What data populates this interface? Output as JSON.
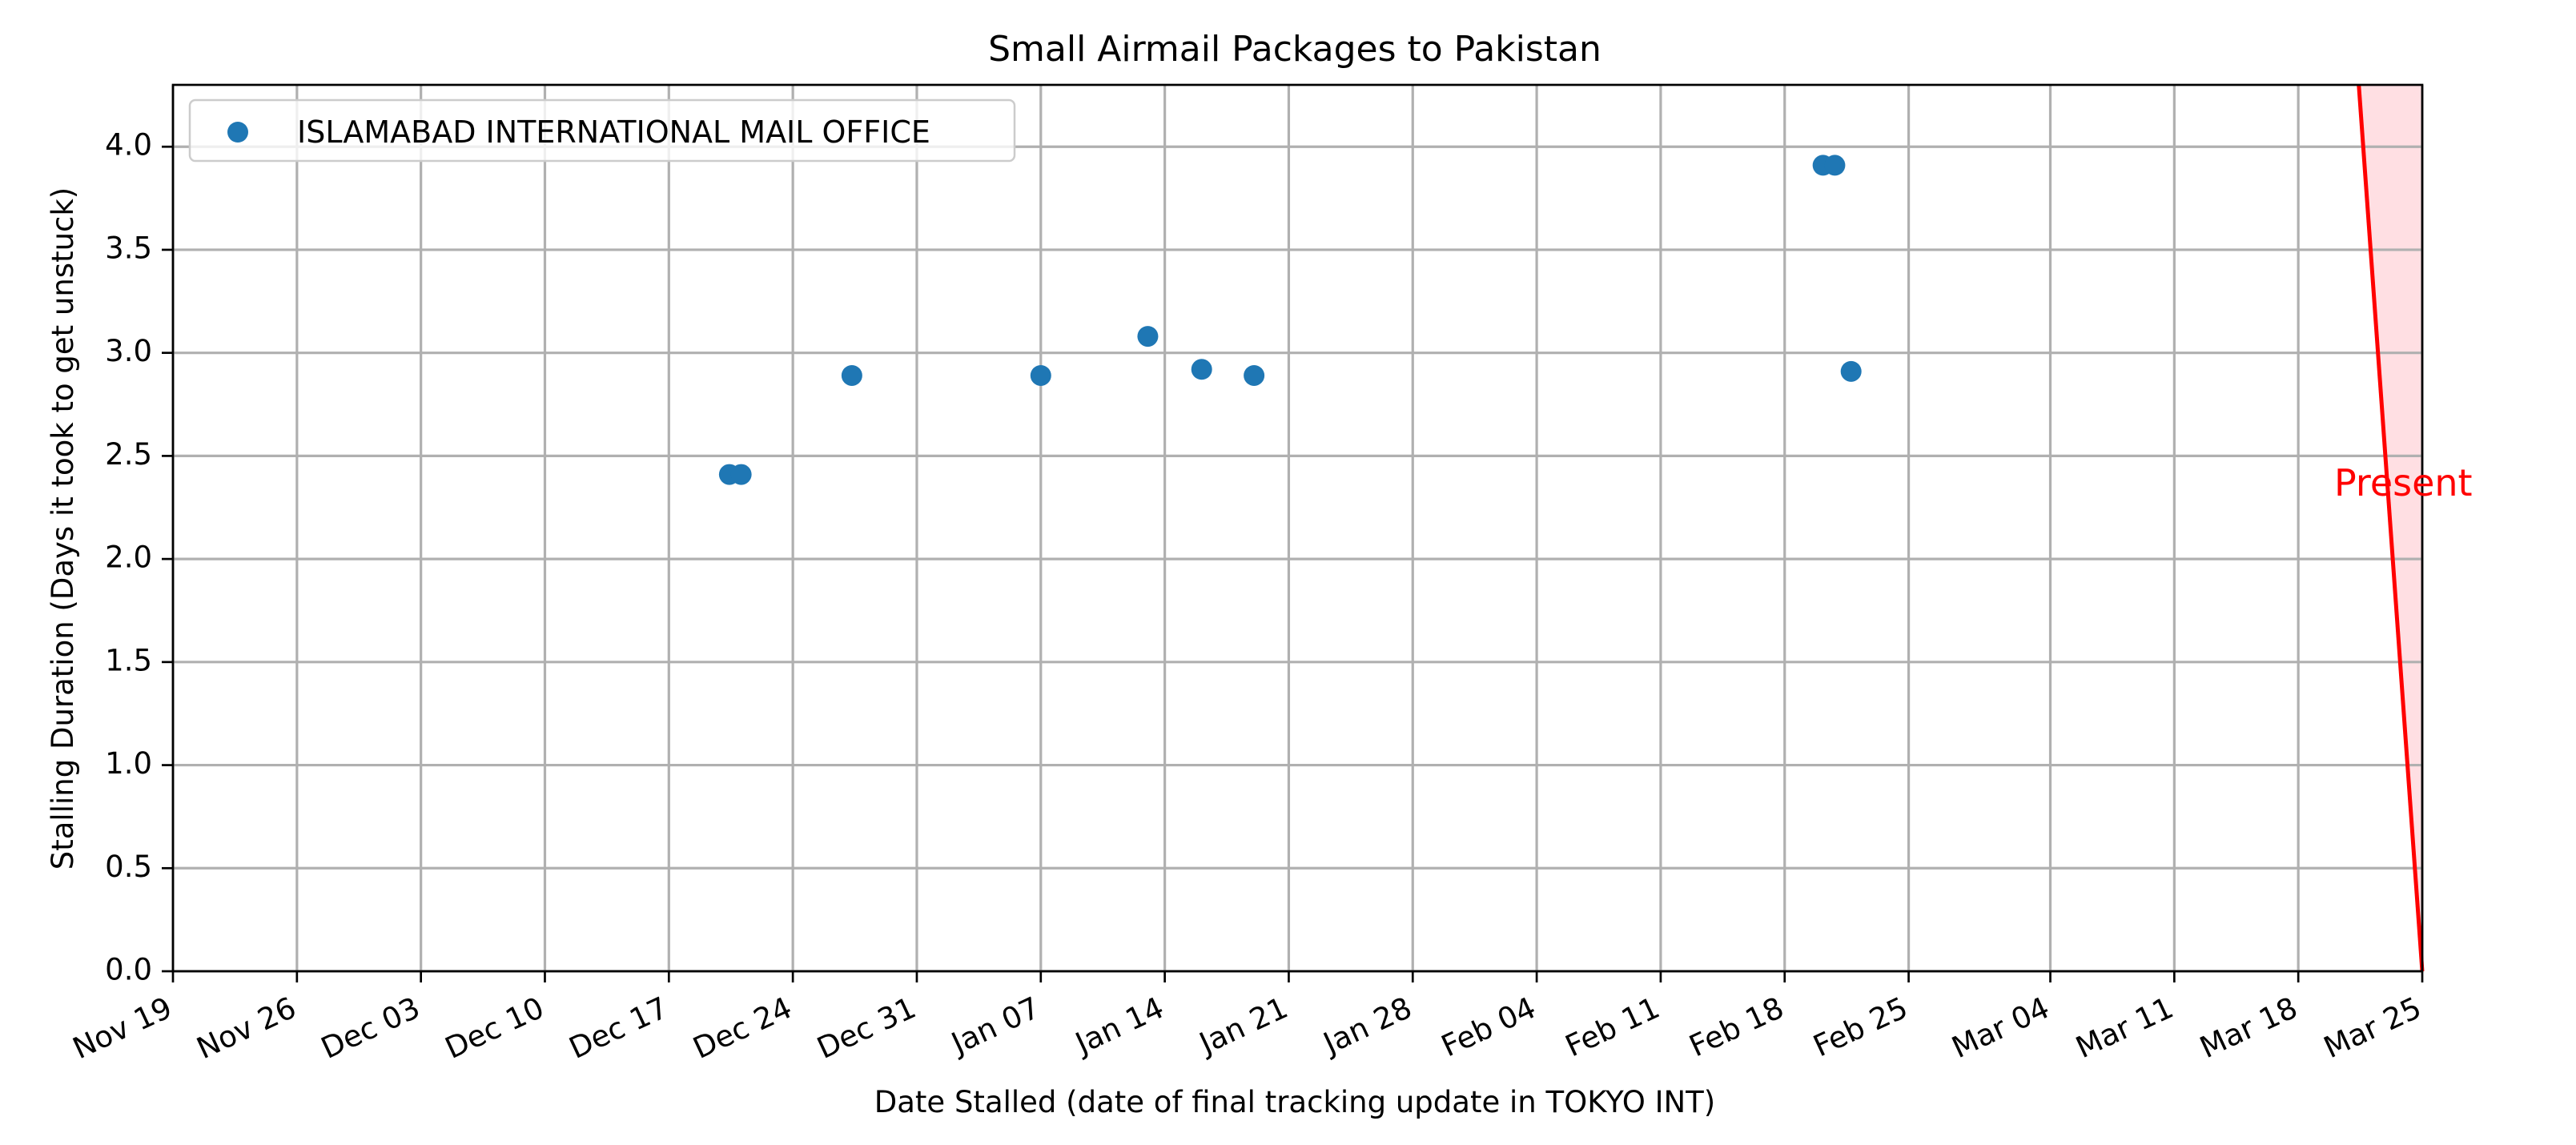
{
  "chart_data": {
    "type": "scatter",
    "title": "Small Airmail Packages to Pakistan",
    "xlabel": "Date Stalled (date of final tracking update in TOKYO INT)",
    "ylabel": "Stalling Duration (Days it took to get unstuck)",
    "x_axis_type": "date",
    "xlim": [
      "2023-11-19",
      "2024-03-25"
    ],
    "ylim": [
      0,
      4.3
    ],
    "x_ticks": [
      {
        "date": "2023-11-19",
        "label": "Nov 19"
      },
      {
        "date": "2023-11-26",
        "label": "Nov 26"
      },
      {
        "date": "2023-12-03",
        "label": "Dec 03"
      },
      {
        "date": "2023-12-10",
        "label": "Dec 10"
      },
      {
        "date": "2023-12-17",
        "label": "Dec 17"
      },
      {
        "date": "2023-12-24",
        "label": "Dec 24"
      },
      {
        "date": "2023-12-31",
        "label": "Dec 31"
      },
      {
        "date": "2024-01-07",
        "label": "Jan 07"
      },
      {
        "date": "2024-01-14",
        "label": "Jan 14"
      },
      {
        "date": "2024-01-21",
        "label": "Jan 21"
      },
      {
        "date": "2024-01-28",
        "label": "Jan 28"
      },
      {
        "date": "2024-02-04",
        "label": "Feb 04"
      },
      {
        "date": "2024-02-11",
        "label": "Feb 11"
      },
      {
        "date": "2024-02-18",
        "label": "Feb 18"
      },
      {
        "date": "2024-02-25",
        "label": "Feb 25"
      },
      {
        "date": "2024-03-04",
        "label": "Mar 04"
      },
      {
        "date": "2024-03-11",
        "label": "Mar 11"
      },
      {
        "date": "2024-03-18",
        "label": "Mar 18"
      },
      {
        "date": "2024-03-25",
        "label": "Mar 25"
      }
    ],
    "y_ticks": [
      {
        "value": 0.0,
        "label": "0.0"
      },
      {
        "value": 0.5,
        "label": "0.5"
      },
      {
        "value": 1.0,
        "label": "1.0"
      },
      {
        "value": 1.5,
        "label": "1.5"
      },
      {
        "value": 2.0,
        "label": "2.0"
      },
      {
        "value": 2.5,
        "label": "2.5"
      },
      {
        "value": 3.0,
        "label": "3.0"
      },
      {
        "value": 3.5,
        "label": "3.5"
      },
      {
        "value": 4.0,
        "label": "4.0"
      }
    ],
    "grid": true,
    "legend_position": "upper-left",
    "series": [
      {
        "name": "ISLAMABAD INTERNATIONAL MAIL OFFICE",
        "color": "#1f77b4",
        "points": [
          {
            "x": "2023-12-20T10:00",
            "y": 2.41
          },
          {
            "x": "2023-12-21T02:00",
            "y": 2.41
          },
          {
            "x": "2023-12-27T08:00",
            "y": 2.89
          },
          {
            "x": "2024-01-07T00:00",
            "y": 2.89
          },
          {
            "x": "2024-01-13T01:00",
            "y": 3.08
          },
          {
            "x": "2024-01-16T02:00",
            "y": 2.92
          },
          {
            "x": "2024-01-19T01:00",
            "y": 2.89
          },
          {
            "x": "2024-02-20T04:00",
            "y": 3.91
          },
          {
            "x": "2024-02-20T20:00",
            "y": 3.91
          },
          {
            "x": "2024-02-21T18:00",
            "y": 2.91
          }
        ]
      }
    ],
    "present_marker": {
      "label": "Present",
      "color": "#ff0000",
      "shade_color": "#ffdfe3",
      "line_top": {
        "x": "2024-03-21T10:00",
        "y": 4.3
      },
      "line_bottom": {
        "x": "2024-03-25T00:00",
        "y": 0.0
      }
    }
  }
}
